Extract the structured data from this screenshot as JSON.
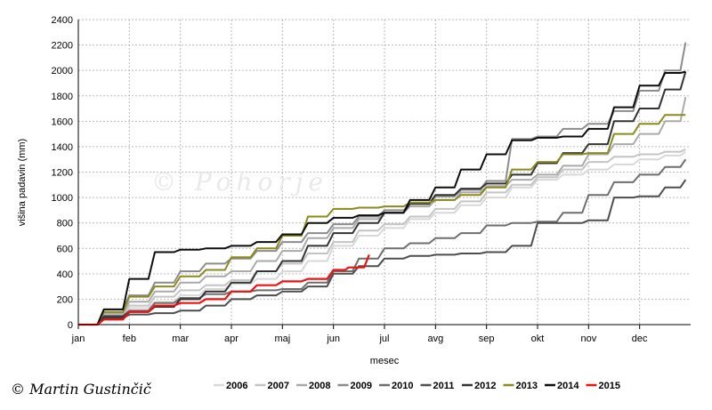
{
  "credit": "© Martin Gustinčič",
  "watermark": "© Pohorje",
  "chart_data": {
    "type": "line",
    "title": "",
    "xlabel": "mesec",
    "ylabel": "višina padavin (mm)",
    "ylim": [
      0,
      2400
    ],
    "yticks": [
      0,
      200,
      400,
      600,
      800,
      1000,
      1200,
      1400,
      1600,
      1800,
      2000,
      2200,
      2400
    ],
    "xlim": [
      0,
      12
    ],
    "month_labels": [
      "jan",
      "feb",
      "mar",
      "apr",
      "maj",
      "jun",
      "jul",
      "avg",
      "sep",
      "okt",
      "nov",
      "dec"
    ],
    "grid": true,
    "legend_position": "bottom",
    "series": [
      {
        "name": "2006",
        "color": "#d8d8d8",
        "x": [
          0,
          0.5,
          1,
          1.5,
          2,
          2.5,
          3,
          3.5,
          4,
          4.5,
          5,
          5.5,
          6,
          6.5,
          7,
          7.5,
          8,
          8.5,
          9,
          9.5,
          10,
          10.5,
          11,
          11.5,
          11.9
        ],
        "y": [
          0,
          60,
          130,
          180,
          230,
          280,
          320,
          360,
          420,
          500,
          620,
          700,
          760,
          830,
          880,
          940,
          1000,
          1080,
          1140,
          1180,
          1220,
          1260,
          1300,
          1330,
          1360
        ]
      },
      {
        "name": "2007",
        "color": "#c4c4c4",
        "x": [
          0,
          0.5,
          1,
          1.5,
          2,
          2.5,
          3,
          3.5,
          4,
          4.5,
          5,
          5.5,
          6,
          6.5,
          7,
          7.5,
          8,
          8.5,
          9,
          9.5,
          10,
          10.5,
          11,
          11.5,
          11.9
        ],
        "y": [
          0,
          80,
          150,
          220,
          270,
          310,
          350,
          420,
          480,
          560,
          650,
          740,
          790,
          850,
          910,
          970,
          1040,
          1100,
          1160,
          1220,
          1280,
          1320,
          1340,
          1360,
          1380
        ]
      },
      {
        "name": "2008",
        "color": "#aaaaaa",
        "x": [
          0,
          0.5,
          1,
          1.5,
          2,
          2.5,
          3,
          3.5,
          4,
          4.5,
          5,
          5.5,
          6,
          6.5,
          7,
          7.5,
          8,
          8.5,
          9,
          9.5,
          10,
          10.5,
          11,
          11.5,
          11.9
        ],
        "y": [
          0,
          90,
          180,
          260,
          330,
          380,
          420,
          500,
          580,
          680,
          760,
          830,
          880,
          930,
          980,
          1040,
          1090,
          1140,
          1180,
          1250,
          1340,
          1420,
          1500,
          1600,
          1790
        ]
      },
      {
        "name": "2009",
        "color": "#8c8c8c",
        "x": [
          0,
          0.5,
          1,
          1.5,
          2,
          2.5,
          3,
          3.5,
          4,
          4.5,
          5,
          5.5,
          6,
          6.5,
          7,
          7.5,
          8,
          8.5,
          9,
          9.5,
          10,
          10.5,
          11,
          11.5,
          11.9
        ],
        "y": [
          0,
          120,
          230,
          330,
          420,
          480,
          520,
          580,
          650,
          720,
          790,
          850,
          900,
          950,
          1010,
          1060,
          1130,
          1460,
          1480,
          1540,
          1580,
          1680,
          1840,
          2000,
          2220
        ]
      },
      {
        "name": "2010",
        "color": "#6e6e6e",
        "x": [
          0,
          0.5,
          1,
          1.5,
          2,
          2.5,
          3,
          3.5,
          4,
          4.5,
          5,
          5.5,
          6,
          6.5,
          7,
          7.5,
          8,
          8.5,
          9,
          9.5,
          10,
          10.5,
          11,
          11.5,
          11.9
        ],
        "y": [
          0,
          70,
          110,
          170,
          210,
          240,
          260,
          270,
          280,
          330,
          420,
          520,
          600,
          640,
          680,
          720,
          780,
          800,
          810,
          880,
          1020,
          1120,
          1180,
          1240,
          1300
        ]
      },
      {
        "name": "2011",
        "color": "#4e4e4e",
        "x": [
          0,
          0.5,
          1,
          1.5,
          2,
          2.5,
          3,
          3.5,
          4,
          4.5,
          5,
          5.5,
          6,
          6.5,
          7,
          7.5,
          8,
          8.5,
          9,
          9.5,
          10,
          10.5,
          11,
          11.5,
          11.9
        ],
        "y": [
          0,
          50,
          80,
          90,
          110,
          150,
          200,
          230,
          260,
          300,
          400,
          460,
          520,
          540,
          550,
          560,
          570,
          620,
          800,
          800,
          820,
          1000,
          1010,
          1080,
          1140
        ]
      },
      {
        "name": "2012",
        "color": "#333333",
        "x": [
          0,
          0.5,
          1,
          1.5,
          2,
          2.5,
          3,
          3.5,
          4,
          4.5,
          5,
          5.5,
          6,
          6.5,
          7,
          7.5,
          8,
          8.5,
          9,
          9.5,
          10,
          10.5,
          11,
          11.5,
          11.9
        ],
        "y": [
          0,
          60,
          100,
          140,
          200,
          260,
          330,
          420,
          500,
          620,
          720,
          800,
          880,
          950,
          1020,
          1070,
          1110,
          1180,
          1270,
          1350,
          1420,
          1600,
          1700,
          1850,
          1990
        ]
      },
      {
        "name": "2013",
        "color": "#8a8a1e",
        "x": [
          0,
          0.5,
          1,
          1.5,
          2,
          2.5,
          3,
          3.5,
          4,
          4.5,
          5,
          5.5,
          6,
          6.5,
          7,
          7.5,
          8,
          8.5,
          9,
          9.5,
          10,
          10.5,
          11,
          11.5,
          11.9
        ],
        "y": [
          0,
          100,
          220,
          300,
          380,
          430,
          530,
          600,
          700,
          850,
          910,
          920,
          930,
          960,
          980,
          1020,
          1080,
          1220,
          1280,
          1340,
          1350,
          1500,
          1580,
          1650,
          1650
        ]
      },
      {
        "name": "2014",
        "color": "#0d0d0d",
        "x": [
          0,
          0.5,
          1,
          1.5,
          2,
          2.5,
          3,
          3.5,
          4,
          4.5,
          5,
          5.5,
          6,
          6.5,
          7,
          7.5,
          8,
          8.5,
          9,
          9.5,
          10,
          10.5,
          11,
          11.5,
          11.9
        ],
        "y": [
          0,
          120,
          360,
          570,
          590,
          600,
          620,
          650,
          710,
          800,
          840,
          860,
          880,
          980,
          1080,
          1220,
          1340,
          1450,
          1470,
          1480,
          1540,
          1710,
          1880,
          1980,
          1990
        ]
      },
      {
        "name": "2015",
        "color": "#ee1111",
        "x": [
          0,
          0.5,
          1,
          1.5,
          2,
          2.5,
          3,
          3.5,
          4,
          4.5,
          5,
          5.3,
          5.7
        ],
        "y": [
          0,
          40,
          100,
          150,
          170,
          200,
          260,
          310,
          340,
          360,
          430,
          450,
          550
        ]
      }
    ]
  }
}
